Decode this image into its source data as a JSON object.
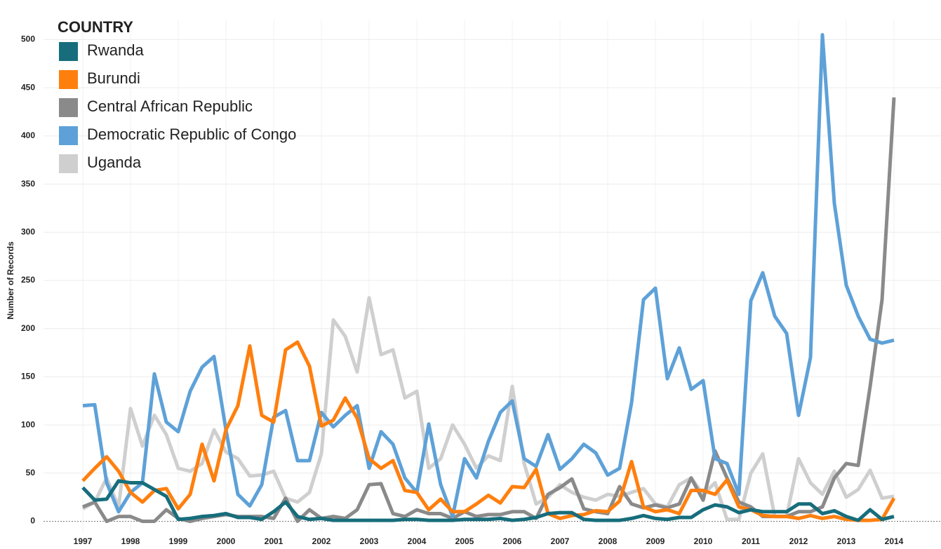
{
  "chart_data": {
    "type": "line",
    "legend_title": "COUNTRY",
    "y_label": "Number of Records",
    "categories": [
      "1997",
      null,
      null,
      null,
      "1998",
      null,
      null,
      null,
      "1999",
      null,
      null,
      null,
      "2000",
      null,
      null,
      null,
      "2001",
      null,
      null,
      null,
      "2002",
      null,
      null,
      null,
      "2003",
      null,
      null,
      null,
      "2004",
      null,
      null,
      null,
      "2005",
      null,
      null,
      null,
      "2006",
      null,
      null,
      null,
      "2007",
      null,
      null,
      null,
      "2008",
      null,
      null,
      null,
      "2009",
      null,
      null,
      null,
      "2010",
      null,
      null,
      null,
      "2011",
      null,
      null,
      null,
      "2012",
      null,
      null,
      null,
      "2013",
      null,
      null,
      null,
      "2014"
    ],
    "ylim": [
      -12,
      520
    ],
    "yticks": [
      0,
      50,
      100,
      150,
      200,
      250,
      300,
      350,
      400,
      450,
      500
    ],
    "grid": true,
    "legend": "top-left",
    "series": [
      {
        "name": "Rwanda",
        "color": "#176d7c",
        "values": [
          35,
          22,
          23,
          42,
          40,
          40,
          33,
          26,
          2,
          3,
          5,
          6,
          8,
          4,
          4,
          2,
          10,
          20,
          5,
          2,
          3,
          1,
          1,
          1,
          1,
          1,
          1,
          2,
          2,
          1,
          1,
          1,
          2,
          2,
          2,
          3,
          1,
          2,
          4,
          8,
          9,
          9,
          2,
          1,
          1,
          1,
          3,
          6,
          3,
          2,
          4,
          4,
          12,
          17,
          15,
          9,
          12,
          10,
          10,
          10,
          18,
          18,
          8,
          11,
          5,
          1,
          12,
          2,
          5
        ]
      },
      {
        "name": "Burundi",
        "color": "#ff7f0e",
        "values": [
          42,
          55,
          67,
          52,
          30,
          20,
          32,
          34,
          13,
          28,
          80,
          42,
          95,
          120,
          182,
          110,
          103,
          178,
          186,
          161,
          99,
          105,
          128,
          107,
          65,
          55,
          63,
          32,
          30,
          12,
          23,
          10,
          10,
          18,
          27,
          19,
          36,
          35,
          54,
          8,
          3,
          6,
          7,
          11,
          10,
          21,
          62,
          15,
          10,
          12,
          8,
          32,
          32,
          28,
          43,
          15,
          12,
          6,
          5,
          5,
          3,
          6,
          3,
          5,
          2,
          1,
          1,
          2,
          24
        ]
      },
      {
        "name": "Central African Republic",
        "color": "#8a8a8a",
        "values": [
          15,
          20,
          0,
          5,
          5,
          0,
          0,
          12,
          3,
          0,
          3,
          5,
          7,
          5,
          5,
          5,
          3,
          24,
          0,
          12,
          3,
          5,
          3,
          12,
          38,
          39,
          8,
          5,
          12,
          8,
          8,
          3,
          10,
          5,
          7,
          7,
          10,
          10,
          3,
          28,
          35,
          44,
          13,
          10,
          8,
          36,
          18,
          14,
          17,
          14,
          18,
          45,
          22,
          73,
          45,
          20,
          15,
          5,
          5,
          5,
          10,
          10,
          15,
          45,
          60,
          58,
          140,
          230,
          440
        ]
      },
      {
        "name": "Democratic Republic of Congo",
        "color": "#5ea1d8",
        "values": [
          120,
          121,
          40,
          10,
          30,
          40,
          153,
          103,
          93,
          135,
          160,
          171,
          95,
          28,
          16,
          38,
          108,
          115,
          63,
          63,
          113,
          98,
          110,
          120,
          55,
          93,
          80,
          45,
          30,
          101,
          38,
          5,
          65,
          45,
          83,
          113,
          125,
          65,
          57,
          90,
          54,
          65,
          80,
          71,
          48,
          55,
          123,
          230,
          242,
          148,
          180,
          137,
          146,
          65,
          60,
          28,
          229,
          258,
          213,
          195,
          110,
          170,
          505,
          330,
          245,
          213,
          189,
          185,
          188
        ]
      },
      {
        "name": "Uganda",
        "color": "#cfcfcf",
        "values": [
          13,
          20,
          45,
          15,
          117,
          78,
          110,
          90,
          55,
          52,
          60,
          95,
          72,
          65,
          47,
          48,
          52,
          24,
          20,
          30,
          70,
          209,
          192,
          155,
          232,
          173,
          178,
          128,
          135,
          55,
          65,
          100,
          80,
          55,
          68,
          63,
          140,
          60,
          18,
          25,
          38,
          30,
          25,
          22,
          28,
          26,
          30,
          34,
          18,
          15,
          38,
          45,
          28,
          40,
          2,
          2,
          50,
          70,
          5,
          5,
          65,
          40,
          28,
          52,
          25,
          33,
          53,
          24,
          26
        ]
      }
    ]
  }
}
